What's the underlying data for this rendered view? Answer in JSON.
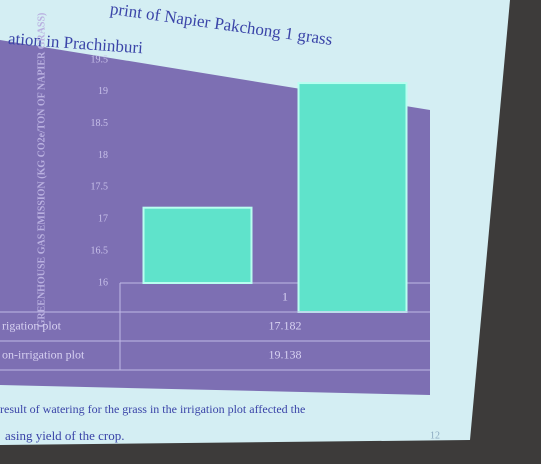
{
  "chart_data": {
    "type": "bar",
    "title": "print of Napier Pakchong 1 grass",
    "subtitle": "ation in Prachinburi",
    "y_label": "GREENHOUSE GAS EMISSION (KG CO2e/TON OF NAPIER GRASS)",
    "categories": [
      "1"
    ],
    "series": [
      {
        "name": "rigation plot",
        "color": "#5fe3cb",
        "values": [
          17.182
        ]
      },
      {
        "name": "on-irrigation plot",
        "color": "#5fe3cb",
        "values": [
          19.138
        ]
      }
    ],
    "ylim": [
      16,
      19.5
    ],
    "yticks": [
      16,
      16.5,
      17,
      17.5,
      18,
      18.5,
      19,
      19.5
    ],
    "annotations": [
      "result of watering for the grass in the irrigation plot affected the",
      "asing yield of the crop.",
      "12"
    ]
  }
}
